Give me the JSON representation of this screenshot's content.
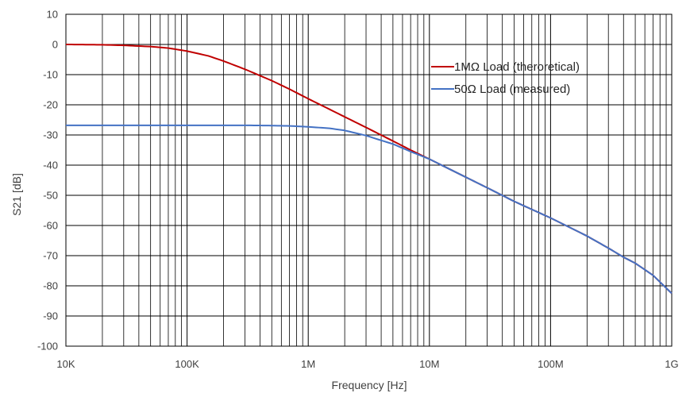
{
  "chart_data": {
    "type": "line",
    "title": "",
    "xlabel": "Frequency [Hz]",
    "ylabel": "S21 [dB]",
    "x_scale": "log",
    "xlim": [
      10000,
      1000000000
    ],
    "ylim": [
      -100,
      10
    ],
    "y_ticks": [
      10,
      0,
      -10,
      -20,
      -30,
      -40,
      -50,
      -60,
      -70,
      -80,
      -90,
      -100
    ],
    "y_tick_labels": [
      "10",
      "0",
      "-10",
      "-20",
      "-30",
      "-40",
      "-50",
      "-60",
      "-70",
      "-80",
      "-90",
      "-100"
    ],
    "x_ticks": [
      10000,
      100000,
      1000000,
      10000000,
      100000000,
      1000000000
    ],
    "x_tick_labels": [
      "10K",
      "100K",
      "1M",
      "10M",
      "100M",
      "1G"
    ],
    "grid": true,
    "legend_position": "top-right",
    "series": [
      {
        "name": "1MΩ Load (theroretical)",
        "color": "#c00000",
        "points": [
          [
            10000,
            0
          ],
          [
            20000,
            -0.1
          ],
          [
            30000,
            -0.3
          ],
          [
            50000,
            -0.7
          ],
          [
            70000,
            -1.2
          ],
          [
            100000,
            -2.2
          ],
          [
            150000,
            -3.8
          ],
          [
            200000,
            -5.5
          ],
          [
            300000,
            -8.2
          ],
          [
            500000,
            -12.0
          ],
          [
            700000,
            -14.8
          ],
          [
            1000000,
            -18.0
          ],
          [
            1500000,
            -21.5
          ],
          [
            2000000,
            -24.0
          ],
          [
            3000000,
            -27.5
          ],
          [
            5000000,
            -32.0
          ],
          [
            7000000,
            -35.0
          ],
          [
            10000000,
            -38.0
          ],
          [
            20000000,
            -44.0
          ],
          [
            30000000,
            -47.5
          ],
          [
            50000000,
            -52.0
          ],
          [
            100000000,
            -57.5
          ],
          [
            200000000,
            -63.5
          ],
          [
            300000000,
            -67.5
          ],
          [
            400000000,
            -70.5
          ],
          [
            500000000,
            -72.5
          ],
          [
            700000000,
            -76.5
          ],
          [
            1000000000,
            -82.5
          ]
        ]
      },
      {
        "name": "50Ω Load (measured)",
        "color": "#4472c4",
        "points": [
          [
            10000,
            -26.8
          ],
          [
            30000,
            -26.8
          ],
          [
            100000,
            -26.8
          ],
          [
            300000,
            -26.8
          ],
          [
            500000,
            -26.9
          ],
          [
            700000,
            -27.0
          ],
          [
            1000000,
            -27.3
          ],
          [
            1500000,
            -27.8
          ],
          [
            2000000,
            -28.5
          ],
          [
            3000000,
            -30.2
          ],
          [
            4000000,
            -31.8
          ],
          [
            5000000,
            -33.0
          ],
          [
            7000000,
            -35.5
          ],
          [
            10000000,
            -38.0
          ],
          [
            20000000,
            -44.0
          ],
          [
            30000000,
            -47.5
          ],
          [
            50000000,
            -52.0
          ],
          [
            100000000,
            -57.5
          ],
          [
            200000000,
            -63.5
          ],
          [
            300000000,
            -67.5
          ],
          [
            400000000,
            -70.5
          ],
          [
            500000000,
            -72.5
          ],
          [
            700000000,
            -76.5
          ],
          [
            1000000000,
            -82.5
          ]
        ]
      }
    ]
  }
}
